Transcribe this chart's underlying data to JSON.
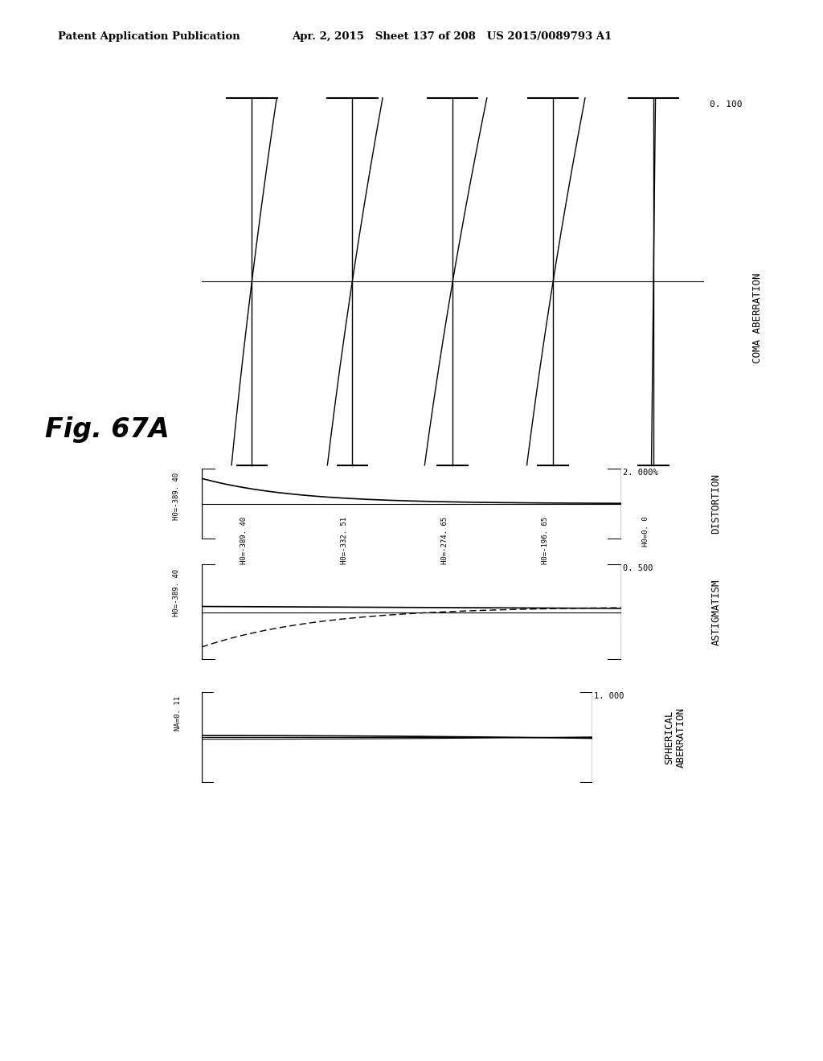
{
  "header_left": "Patent Application Publication",
  "header_mid": "Apr. 2, 2015   Sheet 137 of 208   US 2015/0089793 A1",
  "fig_label": "Fig. 67A",
  "coma_title": "COMA ABERRATION",
  "coma_scale": "0. 100",
  "coma_labels": [
    "H0=-389. 40",
    "H0=-332. 51",
    "H0=-274. 65",
    "H0=-196. 65",
    "H0=0. 0"
  ],
  "coma_tilts": [
    0.45,
    0.55,
    0.62,
    0.58,
    0.04
  ],
  "distortion_title": "DISTORTION",
  "distortion_scale": "2. 000%",
  "distortion_label": "H0=-389. 40",
  "astigmatism_title": "ASTIGMATISM",
  "astigmatism_scale": "0. 500",
  "astigmatism_label": "H0=-389. 40",
  "spherical_title": "SPHERICAL\nABERRATION",
  "spherical_scale": "1. 000",
  "spherical_label": "NA=0. 11",
  "bg_color": "#ffffff",
  "line_color": "#000000"
}
